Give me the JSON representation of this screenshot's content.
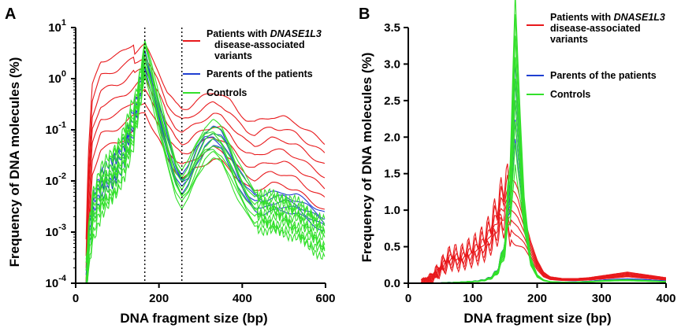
{
  "panels": [
    {
      "letter": "A",
      "legend": {
        "patients_line1": "Patients with ",
        "patients_gene": "DNASE1L3",
        "patients_line2": "disease-associated",
        "patients_line3": "variants",
        "parents": "Parents of the patients",
        "controls": "Controls"
      }
    },
    {
      "letter": "B",
      "legend": {
        "patients_line1": "Patients with ",
        "patients_gene": "DNASE1L3",
        "patients_line2": "disease-associated",
        "patients_line3": "variants",
        "parents": "Parents of the patients",
        "controls": "Controls"
      }
    }
  ],
  "colors": {
    "patients": "#e8191c",
    "parents": "#1f3fd1",
    "controls": "#33e02b",
    "reference": "#000000"
  },
  "chart_data": [
    {
      "type": "line",
      "title": "",
      "xlabel": "DNA fragment size (bp)",
      "ylabel": "Frequency of DNA molecules (%)",
      "xlim": [
        0,
        600
      ],
      "ylim": [
        0.0001,
        10
      ],
      "yscale": "log",
      "xticks": [
        "0",
        "200",
        "400",
        "600"
      ],
      "yticks": [
        {
          "base": "10",
          "exp": "-4"
        },
        {
          "base": "10",
          "exp": "-3"
        },
        {
          "base": "10",
          "exp": "-2"
        },
        {
          "base": "10",
          "exp": "-1"
        },
        {
          "base": "10",
          "exp": "0"
        },
        {
          "base": "10",
          "exp": "1"
        }
      ],
      "reference_lines_x": [
        166,
        255
      ],
      "legend_position": "top-right",
      "grid": false,
      "groups": [
        {
          "name": "Patients with DNASE1L3 disease-associated variants",
          "color_key": "patients",
          "count": 7,
          "x": [
            25,
            30,
            40,
            60,
            80,
            100,
            120,
            140,
            155,
            166,
            180,
            200,
            220,
            240,
            255,
            270,
            290,
            310,
            330,
            350,
            370,
            390,
            410,
            430,
            450,
            470,
            500,
            530,
            560,
            600
          ],
          "y": [
            0.0001,
            0.004,
            0.1,
            0.3,
            0.35,
            0.4,
            0.5,
            0.7,
            0.9,
            1.0,
            0.6,
            0.3,
            0.12,
            0.07,
            0.055,
            0.06,
            0.08,
            0.1,
            0.12,
            0.11,
            0.08,
            0.05,
            0.035,
            0.03,
            0.035,
            0.04,
            0.038,
            0.03,
            0.02,
            0.012
          ]
        },
        {
          "name": "Parents of the patients",
          "color_key": "parents",
          "count": 5,
          "x": [
            25,
            30,
            40,
            60,
            80,
            100,
            120,
            140,
            155,
            166,
            180,
            200,
            220,
            240,
            255,
            270,
            290,
            310,
            330,
            350,
            370,
            390,
            410,
            430,
            450,
            470,
            500,
            530,
            560,
            600
          ],
          "y": [
            0.0001,
            0.0005,
            0.003,
            0.008,
            0.012,
            0.02,
            0.05,
            0.15,
            0.6,
            2.5,
            1.0,
            0.2,
            0.05,
            0.015,
            0.009,
            0.012,
            0.03,
            0.06,
            0.075,
            0.06,
            0.03,
            0.012,
            0.006,
            0.004,
            0.0035,
            0.0038,
            0.004,
            0.0035,
            0.0025,
            0.0015
          ]
        },
        {
          "name": "Controls",
          "color_key": "controls",
          "count": 9,
          "x": [
            25,
            30,
            40,
            60,
            80,
            100,
            120,
            140,
            155,
            166,
            180,
            200,
            220,
            240,
            255,
            270,
            290,
            310,
            330,
            350,
            370,
            390,
            410,
            430,
            450,
            470,
            500,
            530,
            560,
            600
          ],
          "y": [
            0.0001,
            0.0004,
            0.002,
            0.006,
            0.01,
            0.018,
            0.045,
            0.14,
            0.6,
            2.7,
            1.1,
            0.2,
            0.045,
            0.012,
            0.007,
            0.01,
            0.025,
            0.05,
            0.065,
            0.05,
            0.025,
            0.01,
            0.005,
            0.003,
            0.0025,
            0.0024,
            0.0022,
            0.0018,
            0.0012,
            0.0007
          ]
        }
      ]
    },
    {
      "type": "line",
      "title": "",
      "xlabel": "DNA fragment size (bp)",
      "ylabel": "Frequency of DNA molecules (%)",
      "xlim": [
        0,
        400
      ],
      "ylim": [
        0,
        3.5
      ],
      "xticks": [
        "0",
        "100",
        "200",
        "300",
        "400"
      ],
      "yticks": [
        "0.0",
        "0.5",
        "1.0",
        "1.5",
        "2.0",
        "2.5",
        "3.0",
        "3.5"
      ],
      "legend_position": "top-right",
      "grid": false,
      "groups": [
        {
          "name": "Patients with DNASE1L3 disease-associated variants",
          "color_key": "patients",
          "count": 7,
          "x": [
            20,
            30,
            40,
            50,
            60,
            70,
            80,
            90,
            100,
            110,
            120,
            130,
            140,
            150,
            160,
            166,
            170,
            180,
            190,
            200,
            210,
            220,
            240,
            260,
            280,
            300,
            320,
            340,
            360,
            380,
            400
          ],
          "y": [
            0,
            0.03,
            0.1,
            0.2,
            0.3,
            0.35,
            0.32,
            0.38,
            0.42,
            0.48,
            0.55,
            0.7,
            0.9,
            1.1,
            1.0,
            0.95,
            0.9,
            0.7,
            0.45,
            0.25,
            0.12,
            0.07,
            0.05,
            0.05,
            0.06,
            0.08,
            0.1,
            0.12,
            0.1,
            0.08,
            0.06
          ]
        },
        {
          "name": "Parents of the patients",
          "color_key": "parents",
          "count": 5,
          "x": [
            20,
            30,
            40,
            50,
            60,
            70,
            80,
            90,
            100,
            110,
            120,
            130,
            140,
            150,
            160,
            166,
            170,
            180,
            190,
            200,
            210,
            220,
            240,
            260,
            280,
            300,
            320,
            340,
            360,
            380,
            400
          ],
          "y": [
            0,
            0,
            0,
            0.005,
            0.01,
            0.012,
            0.015,
            0.02,
            0.025,
            0.035,
            0.05,
            0.09,
            0.2,
            0.55,
            1.5,
            2.5,
            2.0,
            0.9,
            0.3,
            0.1,
            0.04,
            0.02,
            0.015,
            0.018,
            0.025,
            0.04,
            0.05,
            0.055,
            0.05,
            0.04,
            0.03
          ]
        },
        {
          "name": "Controls",
          "color_key": "controls",
          "count": 9,
          "x": [
            20,
            30,
            40,
            50,
            60,
            70,
            80,
            90,
            100,
            110,
            120,
            130,
            140,
            150,
            160,
            166,
            170,
            180,
            190,
            200,
            210,
            220,
            240,
            260,
            280,
            300,
            320,
            340,
            360,
            380,
            400
          ],
          "y": [
            0,
            0,
            0,
            0.004,
            0.008,
            0.01,
            0.013,
            0.018,
            0.022,
            0.03,
            0.045,
            0.08,
            0.18,
            0.5,
            1.6,
            2.8,
            2.2,
            0.95,
            0.3,
            0.1,
            0.04,
            0.02,
            0.012,
            0.014,
            0.02,
            0.03,
            0.038,
            0.04,
            0.035,
            0.028,
            0.02
          ]
        }
      ]
    }
  ]
}
